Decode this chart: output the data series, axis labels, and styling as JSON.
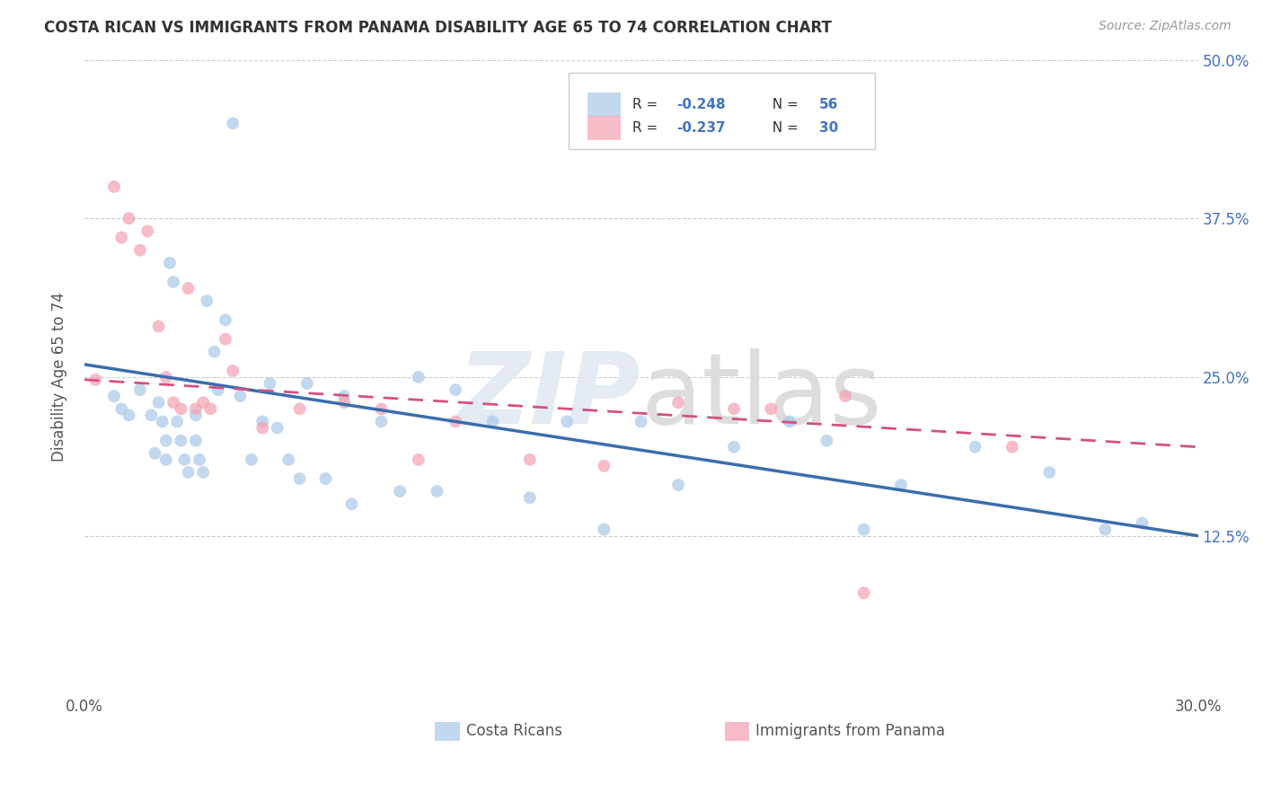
{
  "title": "COSTA RICAN VS IMMIGRANTS FROM PANAMA DISABILITY AGE 65 TO 74 CORRELATION CHART",
  "source": "Source: ZipAtlas.com",
  "ylabel_label": "Disability Age 65 to 74",
  "xlim": [
    0.0,
    0.3
  ],
  "ylim": [
    0.0,
    0.5
  ],
  "yticks": [
    0.125,
    0.25,
    0.375,
    0.5
  ],
  "xticks": [
    0.0,
    0.3
  ],
  "legend_r1": "-0.248",
  "legend_n1": "56",
  "legend_r2": "-0.237",
  "legend_n2": "30",
  "blue_color": "#a8c8e8",
  "pink_color": "#f4a0b0",
  "blue_line_color": "#3a6ead",
  "pink_line_color": "#d45080",
  "blue_x": [
    0.008,
    0.01,
    0.012,
    0.015,
    0.018,
    0.019,
    0.02,
    0.021,
    0.022,
    0.022,
    0.023,
    0.024,
    0.025,
    0.026,
    0.027,
    0.028,
    0.03,
    0.03,
    0.031,
    0.032,
    0.033,
    0.035,
    0.036,
    0.038,
    0.04,
    0.042,
    0.045,
    0.048,
    0.05,
    0.052,
    0.055,
    0.058,
    0.06,
    0.065,
    0.07,
    0.072,
    0.08,
    0.085,
    0.09,
    0.095,
    0.1,
    0.11,
    0.12,
    0.13,
    0.14,
    0.15,
    0.16,
    0.175,
    0.19,
    0.2,
    0.21,
    0.22,
    0.24,
    0.26,
    0.275,
    0.285
  ],
  "blue_y": [
    0.235,
    0.225,
    0.22,
    0.24,
    0.22,
    0.19,
    0.23,
    0.215,
    0.2,
    0.185,
    0.34,
    0.325,
    0.215,
    0.2,
    0.185,
    0.175,
    0.22,
    0.2,
    0.185,
    0.175,
    0.31,
    0.27,
    0.24,
    0.295,
    0.45,
    0.235,
    0.185,
    0.215,
    0.245,
    0.21,
    0.185,
    0.17,
    0.245,
    0.17,
    0.235,
    0.15,
    0.215,
    0.16,
    0.25,
    0.16,
    0.24,
    0.215,
    0.155,
    0.215,
    0.13,
    0.215,
    0.165,
    0.195,
    0.215,
    0.2,
    0.13,
    0.165,
    0.195,
    0.175,
    0.13,
    0.135
  ],
  "pink_x": [
    0.003,
    0.008,
    0.01,
    0.012,
    0.015,
    0.017,
    0.02,
    0.022,
    0.024,
    0.026,
    0.028,
    0.03,
    0.032,
    0.034,
    0.038,
    0.04,
    0.048,
    0.058,
    0.07,
    0.08,
    0.09,
    0.1,
    0.12,
    0.14,
    0.16,
    0.175,
    0.185,
    0.205,
    0.21,
    0.25
  ],
  "pink_y": [
    0.248,
    0.4,
    0.36,
    0.375,
    0.35,
    0.365,
    0.29,
    0.25,
    0.23,
    0.225,
    0.32,
    0.225,
    0.23,
    0.225,
    0.28,
    0.255,
    0.21,
    0.225,
    0.23,
    0.225,
    0.185,
    0.215,
    0.185,
    0.18,
    0.23,
    0.225,
    0.225,
    0.235,
    0.08,
    0.195
  ],
  "blue_line_start_y": 0.26,
  "blue_line_end_y": 0.125,
  "pink_line_start_y": 0.248,
  "pink_line_end_y": 0.195
}
